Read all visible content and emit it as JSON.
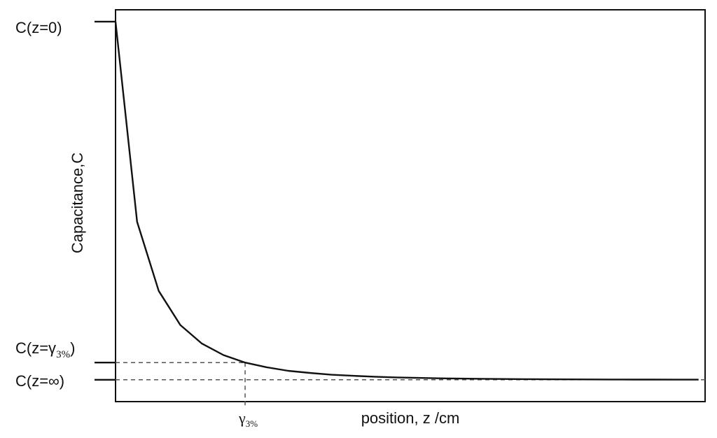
{
  "chart_data": {
    "type": "line",
    "title": "",
    "xlabel": "position, z /cm",
    "ylabel": "Capacitance,C",
    "y_tick_labels": {
      "c0": "C(z=0)",
      "cgamma_main": "C(z=γ",
      "cgamma_sub": "3%",
      "cgamma_close": ")",
      "cinf": "C(z=∞)"
    },
    "x_marker_label": {
      "main": "γ",
      "sub": "3%"
    },
    "x": [
      0,
      1,
      2,
      3,
      4,
      5,
      6,
      7,
      8,
      9,
      10,
      11,
      12,
      13,
      14,
      15,
      16,
      17,
      18,
      19,
      20,
      21,
      22,
      23,
      24,
      25,
      26,
      27
    ],
    "y": [
      1.0,
      0.441,
      0.248,
      0.153,
      0.101,
      0.069,
      0.048,
      0.035,
      0.025,
      0.019,
      0.014,
      0.011,
      0.0085,
      0.0066,
      0.0052,
      0.0041,
      0.0033,
      0.0026,
      0.0021,
      0.0017,
      0.0014,
      0.0011,
      0.0009,
      0.0007,
      0.0006,
      0.0005,
      0.0004,
      0.0003
    ],
    "reference_levels": {
      "c0": 1.0,
      "cgamma": 0.048,
      "cinf": 0.0
    },
    "gamma_x": 6,
    "xlim": [
      0,
      27.3
    ],
    "ylim": [
      -0.061,
      1.033
    ],
    "grid": false,
    "legend": "none",
    "line_color": "#111111",
    "guide_color": "#555555"
  }
}
